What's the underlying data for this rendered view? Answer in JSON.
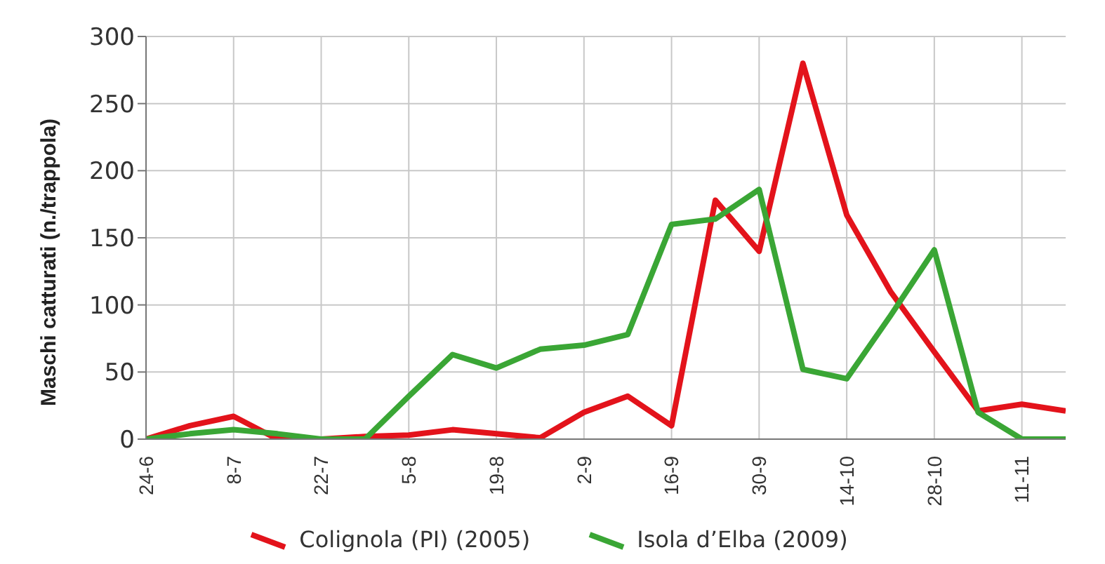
{
  "chart_data": {
    "type": "line",
    "ylabel": "Maschi catturati (n./trappola)",
    "categories": [
      "24-6",
      null,
      "8-7",
      null,
      "22-7",
      null,
      "5-8",
      null,
      "19-8",
      null,
      "2-9",
      null,
      "16-9",
      null,
      "30-9",
      null,
      "14-10",
      null,
      "28-10",
      null,
      "11-11",
      null
    ],
    "series": [
      {
        "name": "Colignola (PI) (2005)",
        "color": "#e3131b",
        "values": [
          0,
          10,
          17,
          0,
          0,
          2,
          3,
          7,
          4,
          1,
          20,
          32,
          10,
          178,
          140,
          280,
          167,
          110,
          65,
          21,
          26,
          21
        ]
      },
      {
        "name": "Isola d’Elba (2009)",
        "color": "#3aa635",
        "values": [
          0,
          4,
          7,
          4,
          0,
          0,
          32,
          63,
          53,
          67,
          70,
          78,
          160,
          164,
          186,
          52,
          45,
          92,
          141,
          20,
          0,
          0
        ]
      }
    ],
    "ylim": [
      0,
      300
    ],
    "yticks": [
      0,
      50,
      100,
      150,
      200,
      250,
      300
    ],
    "grid": true,
    "legend": "bottom",
    "marker": "none",
    "line_style": "solid"
  }
}
